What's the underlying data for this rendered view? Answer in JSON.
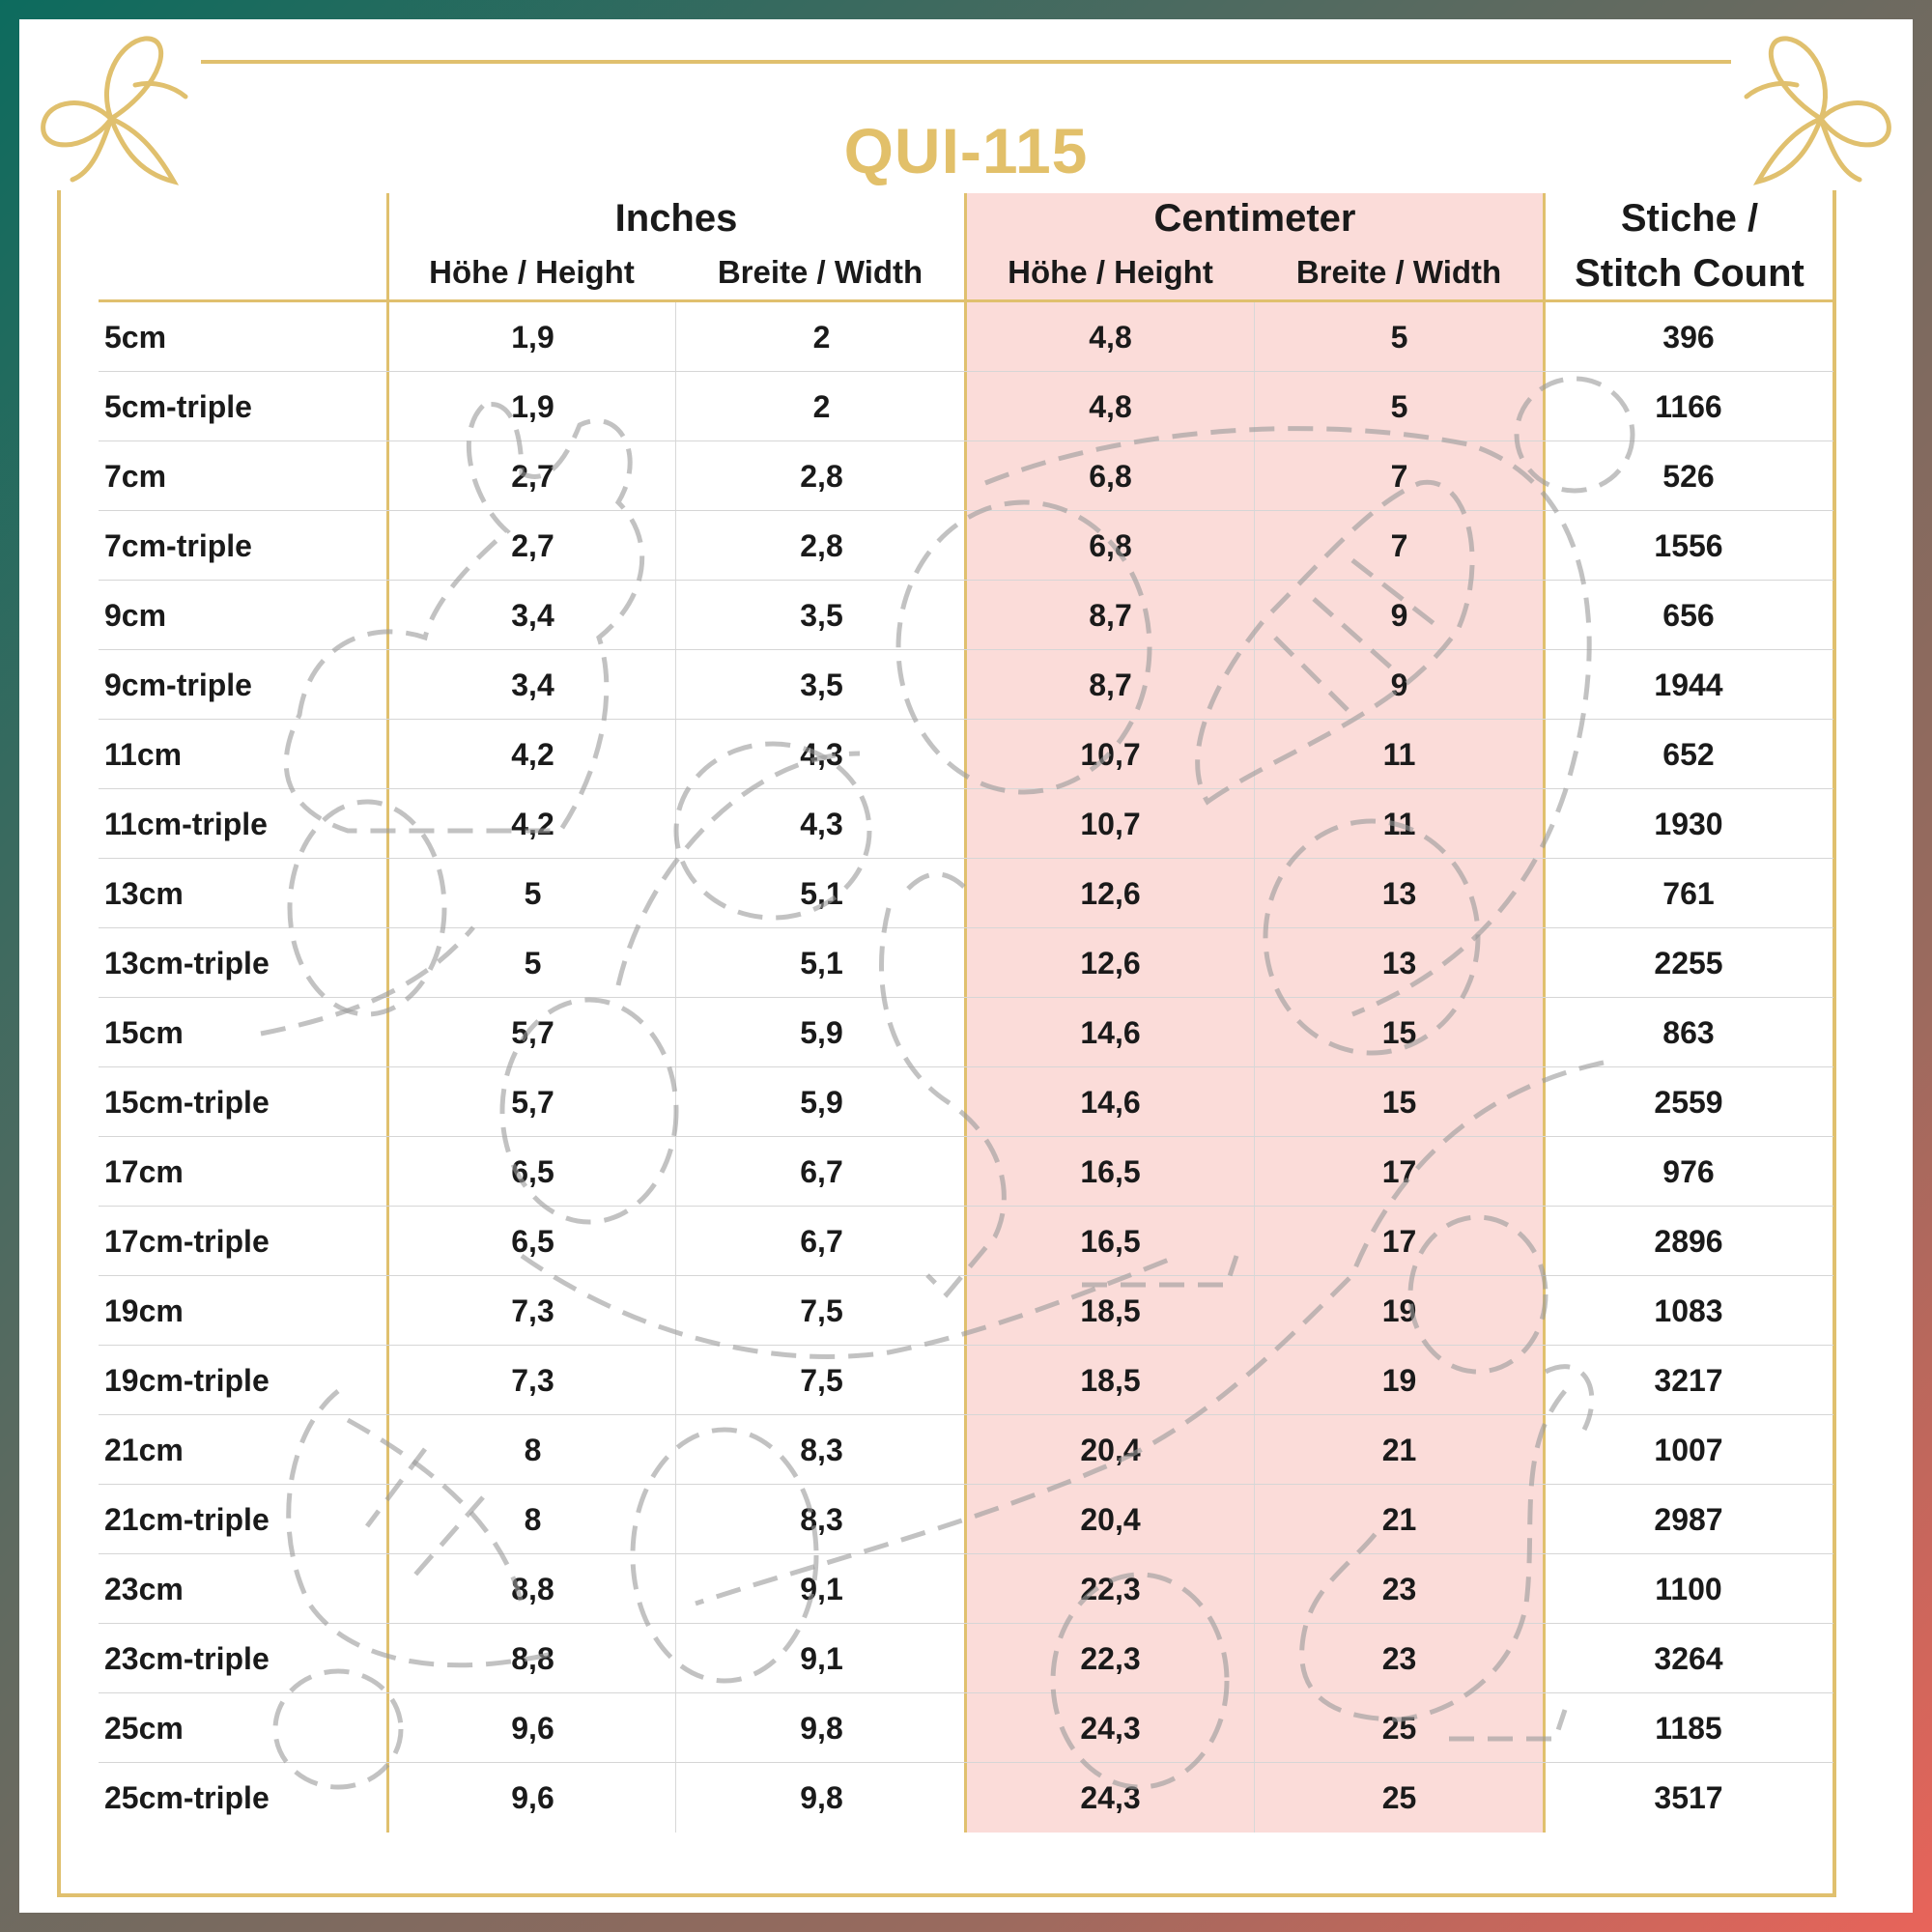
{
  "title": "QUI-115",
  "header": {
    "inches": "Inches",
    "centimeter": "Centimeter",
    "stitch_line1": "Stiche /",
    "stitch_line2": "Stitch Count",
    "height": "Höhe / Height",
    "width": "Breite / Width"
  },
  "colors": {
    "gold": "#e0c06e",
    "title": "#e2c06a",
    "cm_highlight": "#fbdcd9"
  },
  "icons": [
    "butterfly-icon",
    "butterfly-icon",
    "bunny-outline-watermark"
  ],
  "rows": [
    {
      "size": "5cm",
      "in_h": "1,9",
      "in_w": "2",
      "cm_h": "4,8",
      "cm_w": "5",
      "stitches": "396"
    },
    {
      "size": "5cm-triple",
      "in_h": "1,9",
      "in_w": "2",
      "cm_h": "4,8",
      "cm_w": "5",
      "stitches": "1166"
    },
    {
      "size": "7cm",
      "in_h": "2,7",
      "in_w": "2,8",
      "cm_h": "6,8",
      "cm_w": "7",
      "stitches": "526"
    },
    {
      "size": "7cm-triple",
      "in_h": "2,7",
      "in_w": "2,8",
      "cm_h": "6,8",
      "cm_w": "7",
      "stitches": "1556"
    },
    {
      "size": "9cm",
      "in_h": "3,4",
      "in_w": "3,5",
      "cm_h": "8,7",
      "cm_w": "9",
      "stitches": "656"
    },
    {
      "size": "9cm-triple",
      "in_h": "3,4",
      "in_w": "3,5",
      "cm_h": "8,7",
      "cm_w": "9",
      "stitches": "1944"
    },
    {
      "size": "11cm",
      "in_h": "4,2",
      "in_w": "4,3",
      "cm_h": "10,7",
      "cm_w": "11",
      "stitches": "652"
    },
    {
      "size": "11cm-triple",
      "in_h": "4,2",
      "in_w": "4,3",
      "cm_h": "10,7",
      "cm_w": "11",
      "stitches": "1930"
    },
    {
      "size": "13cm",
      "in_h": "5",
      "in_w": "5,1",
      "cm_h": "12,6",
      "cm_w": "13",
      "stitches": "761"
    },
    {
      "size": "13cm-triple",
      "in_h": "5",
      "in_w": "5,1",
      "cm_h": "12,6",
      "cm_w": "13",
      "stitches": "2255"
    },
    {
      "size": "15cm",
      "in_h": "5,7",
      "in_w": "5,9",
      "cm_h": "14,6",
      "cm_w": "15",
      "stitches": "863"
    },
    {
      "size": "15cm-triple",
      "in_h": "5,7",
      "in_w": "5,9",
      "cm_h": "14,6",
      "cm_w": "15",
      "stitches": "2559"
    },
    {
      "size": "17cm",
      "in_h": "6,5",
      "in_w": "6,7",
      "cm_h": "16,5",
      "cm_w": "17",
      "stitches": "976"
    },
    {
      "size": "17cm-triple",
      "in_h": "6,5",
      "in_w": "6,7",
      "cm_h": "16,5",
      "cm_w": "17",
      "stitches": "2896"
    },
    {
      "size": "19cm",
      "in_h": "7,3",
      "in_w": "7,5",
      "cm_h": "18,5",
      "cm_w": "19",
      "stitches": "1083"
    },
    {
      "size": "19cm-triple",
      "in_h": "7,3",
      "in_w": "7,5",
      "cm_h": "18,5",
      "cm_w": "19",
      "stitches": "3217"
    },
    {
      "size": "21cm",
      "in_h": "8",
      "in_w": "8,3",
      "cm_h": "20,4",
      "cm_w": "21",
      "stitches": "1007"
    },
    {
      "size": "21cm-triple",
      "in_h": "8",
      "in_w": "8,3",
      "cm_h": "20,4",
      "cm_w": "21",
      "stitches": "2987"
    },
    {
      "size": "23cm",
      "in_h": "8,8",
      "in_w": "9,1",
      "cm_h": "22,3",
      "cm_w": "23",
      "stitches": "1100"
    },
    {
      "size": "23cm-triple",
      "in_h": "8,8",
      "in_w": "9,1",
      "cm_h": "22,3",
      "cm_w": "23",
      "stitches": "3264"
    },
    {
      "size": "25cm",
      "in_h": "9,6",
      "in_w": "9,8",
      "cm_h": "24,3",
      "cm_w": "25",
      "stitches": "1185"
    },
    {
      "size": "25cm-triple",
      "in_h": "9,6",
      "in_w": "9,8",
      "cm_h": "24,3",
      "cm_w": "25",
      "stitches": "3517"
    }
  ]
}
